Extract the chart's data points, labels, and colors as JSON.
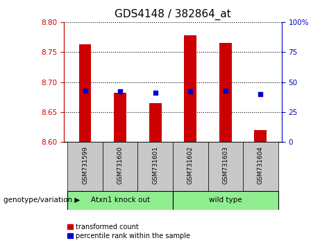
{
  "title": "GDS4148 / 382864_at",
  "categories": [
    "GSM731599",
    "GSM731600",
    "GSM731601",
    "GSM731602",
    "GSM731603",
    "GSM731604"
  ],
  "bar_values": [
    8.763,
    8.682,
    8.665,
    8.778,
    8.765,
    8.62
  ],
  "bar_bottom": 8.6,
  "blue_marker_right": [
    43,
    42,
    41,
    42,
    43,
    40
  ],
  "ylim_left": [
    8.6,
    8.8
  ],
  "ylim_right": [
    0,
    100
  ],
  "yticks_left": [
    8.6,
    8.65,
    8.7,
    8.75,
    8.8
  ],
  "yticks_right": [
    0,
    25,
    50,
    75,
    100
  ],
  "bar_color": "#cc0000",
  "blue_color": "#0000cc",
  "group1_label": "Atxn1 knock out",
  "group2_label": "wild type",
  "group1_indices": [
    0,
    1,
    2
  ],
  "group2_indices": [
    3,
    4,
    5
  ],
  "group_bg_color": "#90ee90",
  "tick_bg_color": "#c8c8c8",
  "legend_red_label": "transformed count",
  "legend_blue_label": "percentile rank within the sample",
  "genotype_label": "genotype/variation",
  "title_fontsize": 11,
  "tick_fontsize": 7.5,
  "bar_width": 0.35,
  "figsize": [
    4.61,
    3.54
  ],
  "dpi": 100
}
